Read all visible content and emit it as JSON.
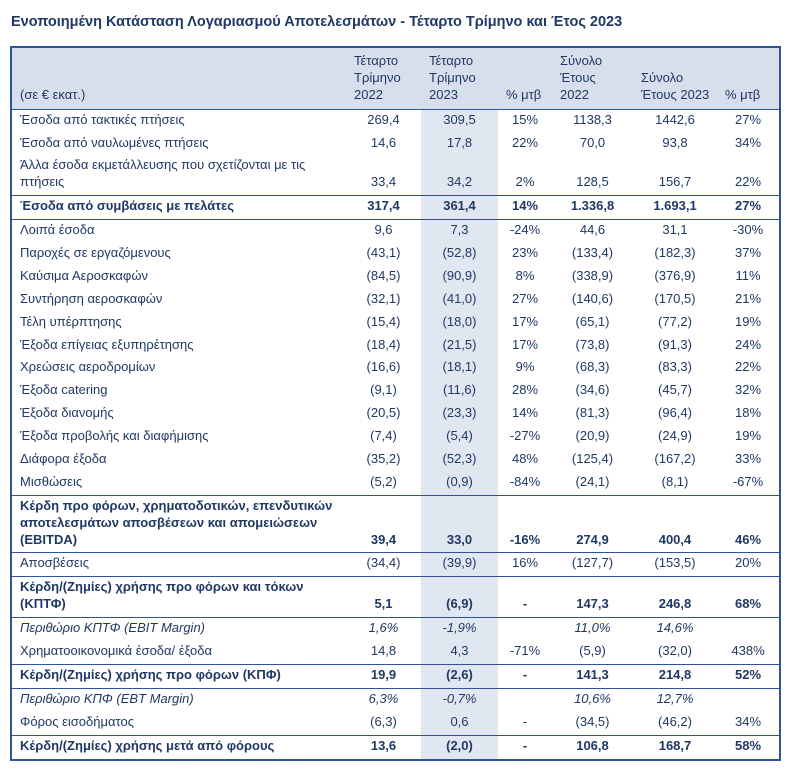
{
  "page": {
    "title": "Ενοποιημένη Κατάσταση Λογαριασμού Αποτελεσμάτων - Τέταρτο Τρίμηνο και Έτος 2023"
  },
  "table": {
    "unit_label": "(σε € εκατ.)",
    "columns": [
      "Τέταρτο Τρίμηνο 2022",
      "Τέταρτο Τρίμηνο 2023",
      "% μτβ",
      "Σύνολο Έτους 2022",
      "Σύνολο Έτους 2023",
      "% μτβ"
    ],
    "rows": [
      {
        "label": "Έσοδα από τακτικές πτήσεις",
        "values": [
          "269,4",
          "309,5",
          "15%",
          "1138,3",
          "1442,6",
          "27%"
        ]
      },
      {
        "label": "Έσοδα από ναυλωμένες πτήσεις",
        "values": [
          "14,6",
          "17,8",
          "22%",
          "70,0",
          "93,8",
          "34%"
        ]
      },
      {
        "label": "Άλλα έσοδα εκμετάλλευσης που σχετίζονται με τις πτήσεις",
        "values": [
          "33,4",
          "34,2",
          "2%",
          "128,5",
          "156,7",
          "22%"
        ]
      },
      {
        "label": "Έσοδα από συμβάσεις με πελάτες",
        "values": [
          "317,4",
          "361,4",
          "14%",
          "1.336,8",
          "1.693,1",
          "27%"
        ],
        "bold": true,
        "line_above": true,
        "line_below": true
      },
      {
        "label": "Λοιπά έσοδα",
        "values": [
          "9,6",
          "7,3",
          "-24%",
          "44,6",
          "31,1",
          "-30%"
        ]
      },
      {
        "label": "Παροχές σε εργαζόμενους",
        "values": [
          "(43,1)",
          "(52,8)",
          "23%",
          "(133,4)",
          "(182,3)",
          "37%"
        ]
      },
      {
        "label": "Καύσιμα Αεροσκαφών",
        "values": [
          "(84,5)",
          "(90,9)",
          "8%",
          "(338,9)",
          "(376,9)",
          "11%"
        ]
      },
      {
        "label": "Συντήρηση αεροσκαφών",
        "values": [
          "(32,1)",
          "(41,0)",
          "27%",
          "(140,6)",
          "(170,5)",
          "21%"
        ]
      },
      {
        "label": "Τέλη υπέρπτησης",
        "values": [
          "(15,4)",
          "(18,0)",
          "17%",
          "(65,1)",
          "(77,2)",
          "19%"
        ]
      },
      {
        "label": "Έξοδα επίγειας εξυπηρέτησης",
        "values": [
          "(18,4)",
          "(21,5)",
          "17%",
          "(73,8)",
          "(91,3)",
          "24%"
        ]
      },
      {
        "label": "Χρεώσεις αεροδρομίων",
        "values": [
          "(16,6)",
          "(18,1)",
          "9%",
          "(68,3)",
          "(83,3)",
          "22%"
        ]
      },
      {
        "label": "Έξοδα catering",
        "values": [
          "(9,1)",
          "(11,6)",
          "28%",
          "(34,6)",
          "(45,7)",
          "32%"
        ]
      },
      {
        "label": "Έξοδα διανομής",
        "values": [
          "(20,5)",
          "(23,3)",
          "14%",
          "(81,3)",
          "(96,4)",
          "18%"
        ]
      },
      {
        "label": "Έξοδα προβολής και διαφήμισης",
        "values": [
          "(7,4)",
          "(5,4)",
          "-27%",
          "(20,9)",
          "(24,9)",
          "19%"
        ]
      },
      {
        "label": "Διάφορα έξοδα",
        "values": [
          "(35,2)",
          "(52,3)",
          "48%",
          "(125,4)",
          "(167,2)",
          "33%"
        ]
      },
      {
        "label": "Μισθώσεις",
        "values": [
          "(5,2)",
          "(0,9)",
          "-84%",
          "(24,1)",
          "(8,1)",
          "-67%"
        ]
      },
      {
        "label": "Κέρδη προ φόρων, χρηματοδοτικών, επενδυτικών αποτελεσμάτων αποσβέσεων και απομειώσεων (EBITDA)",
        "values": [
          "39,4",
          "33,0",
          "-16%",
          "274,9",
          "400,4",
          "46%"
        ],
        "bold": true,
        "line_above": true,
        "line_below": true
      },
      {
        "label": "Αποσβέσεις",
        "values": [
          "(34,4)",
          "(39,9)",
          "16%",
          "(127,7)",
          "(153,5)",
          "20%"
        ]
      },
      {
        "label": "Κέρδη/(Ζημίες) χρήσης προ φόρων και τόκων (ΚΠΤΦ)",
        "values": [
          "5,1",
          "(6,9)",
          "-",
          "147,3",
          "246,8",
          "68%"
        ],
        "bold": true,
        "line_above": true,
        "line_below": true
      },
      {
        "label": "Περιθώριο ΚΠΤΦ (EBIT Margin)",
        "values": [
          "1,6%",
          "-1,9%",
          "",
          "11,0%",
          "14,6%",
          ""
        ],
        "italic": true
      },
      {
        "label": "Χρηματοοικονομικά έσοδα/ έξοδα",
        "values": [
          "14,8",
          "4,3",
          "-71%",
          "(5,9)",
          "(32,0)",
          "438%"
        ]
      },
      {
        "label": "Κέρδη/(Ζημίες) χρήσης προ φόρων (ΚΠΦ)",
        "values": [
          "19,9",
          "(2,6)",
          "-",
          "141,3",
          "214,8",
          "52%"
        ],
        "bold": true,
        "line_above": true,
        "line_below": true
      },
      {
        "label": "Περιθώριο ΚΠΦ (EBT Margin)",
        "values": [
          "6,3%",
          "-0,7%",
          "",
          "10,6%",
          "12,7%",
          ""
        ],
        "italic": true
      },
      {
        "label": "Φόρος εισοδήματος",
        "values": [
          "(6,3)",
          "0,6",
          "-",
          "(34,5)",
          "(46,2)",
          "34%"
        ]
      },
      {
        "label": "Κέρδη/(Ζημίες) χρήσης μετά από φόρους",
        "values": [
          "13,6",
          "(2,0)",
          "-",
          "106,8",
          "168,7",
          "58%"
        ],
        "bold": true,
        "line_above": true
      }
    ]
  },
  "colors": {
    "text": "#1F3864",
    "border": "#2F5496",
    "header_bg": "#D8DFEC",
    "highlight_column_bg": "#E1E7F1"
  }
}
